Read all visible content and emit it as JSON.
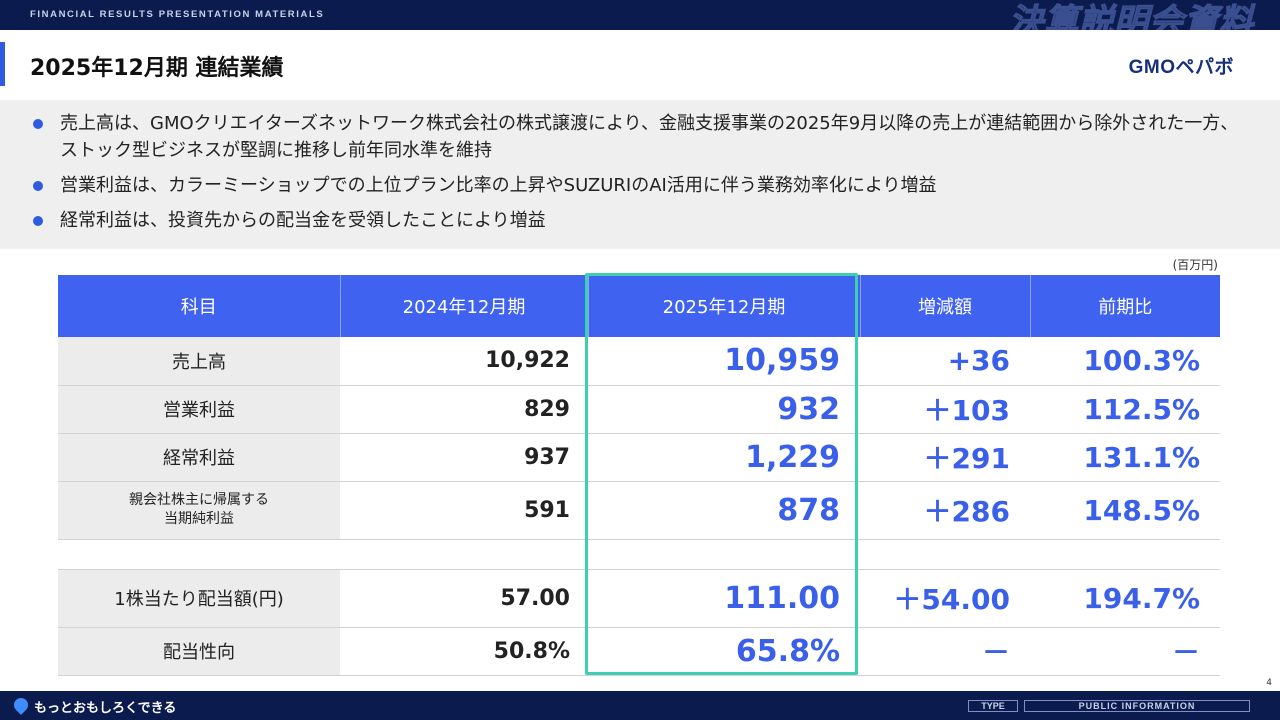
{
  "header": {
    "top_label": "FINANCIAL RESULTS PRESENTATION MATERIALS",
    "top_jp": "決算説明会資料",
    "title": "2025年12月期 連結業績",
    "logo": "GMOペパボ"
  },
  "summary": [
    "売上高は、GMOクリエイターズネットワーク株式会社の株式譲渡により、金融支援事業の2025年9月以降の売上が連結範囲から除外された一方、ストック型ビジネスが堅調に推移し前年同水準を維持",
    "営業利益は、カラーミーショップでの上位プラン比率の上昇やSUZURIのAI活用に伴う業務効率化により増益",
    "経常利益は、投資先からの配当金を受領したことにより増益"
  ],
  "unit": "(百万円)",
  "table": {
    "headers": [
      "科目",
      "2024年12月期",
      "2025年12月期",
      "増減額",
      "前期比"
    ],
    "rows": [
      {
        "label": "売上高",
        "prev": "10,922",
        "cur": "10,959",
        "diff": "+36",
        "ratio": "100.3%"
      },
      {
        "label": "営業利益",
        "prev": "829",
        "cur": "932",
        "diff": "＋103",
        "ratio": "112.5%"
      },
      {
        "label": "経常利益",
        "prev": "937",
        "cur": "1,229",
        "diff": "＋291",
        "ratio": "131.1%"
      },
      {
        "label": "親会社株主に帰属する\n当期純利益",
        "prev": "591",
        "cur": "878",
        "diff": "＋286",
        "ratio": "148.5%"
      },
      {
        "label": "1株当たり配当額(円)",
        "prev": "57.00",
        "cur": "111.00",
        "diff": "＋54.00",
        "ratio": "194.7%"
      },
      {
        "label": "配当性向",
        "prev": "50.8%",
        "cur": "65.8%",
        "diff": "－",
        "ratio": "－"
      }
    ]
  },
  "footer": {
    "tagline": "もっとおもしろくできる",
    "type_label": "TYPE",
    "info_label": "PUBLIC INFORMATION",
    "page": "4"
  },
  "colors": {
    "navy": "#0c1b4d",
    "accent_blue": "#3f62f0",
    "value_blue": "#3a5fe8",
    "highlight_teal": "#3dcfb0"
  }
}
